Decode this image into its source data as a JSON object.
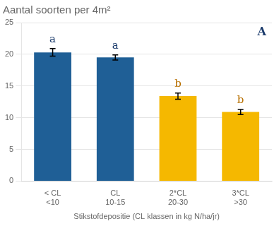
{
  "chart_data": {
    "type": "bar",
    "title": "Aantal soorten per 4m²",
    "xlabel": "Stikstofdepositie (CL klassen in kg N/ha/jr)",
    "categories": [
      "< CL\n<10",
      "CL\n10-15",
      "2*CL\n20-30",
      "3*CL\n>30"
    ],
    "values": [
      20.3,
      19.5,
      13.4,
      10.9
    ],
    "errors": [
      0.6,
      0.4,
      0.5,
      0.4
    ],
    "colors": [
      "#1f5f96",
      "#1f5f96",
      "#f5b800",
      "#f5b800"
    ],
    "annotations": [
      {
        "text": "a",
        "category": "< CL\n<10",
        "color": "#1a3a6b"
      },
      {
        "text": "a",
        "category": "CL\n10-15",
        "color": "#1a3a6b"
      },
      {
        "text": "b",
        "category": "2*CL\n20-30",
        "color": "#b87000"
      },
      {
        "text": "b",
        "category": "3*CL\n>30",
        "color": "#b87000"
      },
      {
        "text": "A",
        "color": "#1a3a6b"
      }
    ],
    "ylim": [
      0,
      25
    ],
    "yticks": [
      0,
      5,
      10,
      15,
      20,
      25
    ],
    "grid": true
  }
}
